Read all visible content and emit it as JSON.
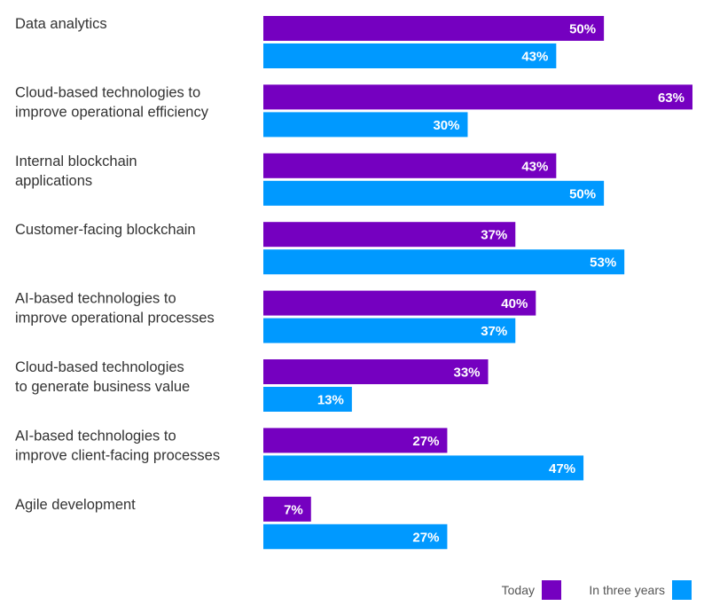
{
  "chart_data": {
    "type": "bar",
    "orientation": "horizontal",
    "title": "",
    "xlabel": "",
    "ylabel": "",
    "xlim": [
      0,
      63
    ],
    "grid": false,
    "legend_position": "bottom-right",
    "categories": [
      [
        "Data analytics"
      ],
      [
        "Cloud-based technologies to",
        "improve operational efficiency"
      ],
      [
        "Internal blockchain",
        "applications"
      ],
      [
        "Customer-facing blockchain"
      ],
      [
        "AI-based technologies to",
        "improve operational processes"
      ],
      [
        "Cloud-based technologies",
        "to generate business value"
      ],
      [
        "AI-based technologies to",
        "improve client-facing processes"
      ],
      [
        "Agile development"
      ]
    ],
    "series": [
      {
        "name": "Today",
        "color": "#7500c0",
        "values": [
          50,
          63,
          43,
          37,
          40,
          33,
          27,
          7
        ],
        "labels": [
          "50%",
          "63%",
          "43%",
          "37%",
          "40%",
          "33%",
          "27%",
          "7%"
        ]
      },
      {
        "name": "In three years",
        "color": "#0099ff",
        "values": [
          43,
          30,
          50,
          53,
          37,
          13,
          47,
          27
        ],
        "labels": [
          "43%",
          "30%",
          "50%",
          "53%",
          "37%",
          "13%",
          "47%",
          "27%"
        ]
      }
    ]
  }
}
